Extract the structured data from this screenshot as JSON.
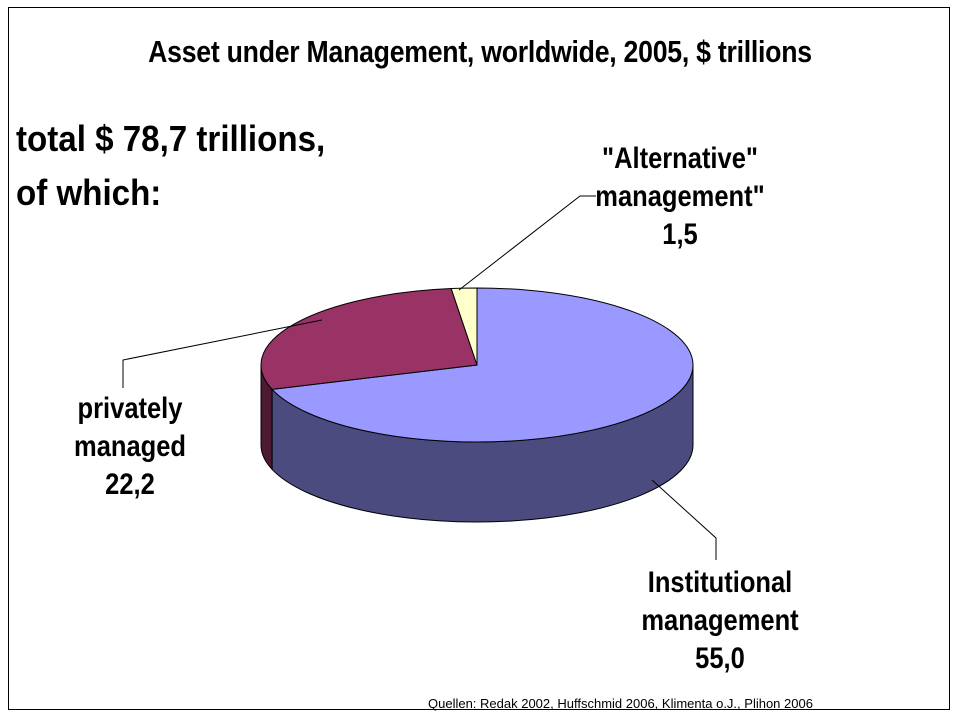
{
  "chart_data": {
    "type": "pie",
    "title": "Asset under Management, worldwide, 2005,  $ trillions",
    "subtitle": "total  $ 78,7 trillions, of which:",
    "slices": [
      {
        "label_lines": [
          "Institutional",
          "management",
          "55,0"
        ],
        "value": 55.0,
        "color": "#9999ff",
        "side_color": "#4b4b80"
      },
      {
        "label_lines": [
          "privately",
          "managed",
          "22,2"
        ],
        "value": 22.2,
        "color": "#993366",
        "side_color": "#4d1a33"
      },
      {
        "label_lines": [
          "\"Alternative\"",
          "management\"",
          "1,5"
        ],
        "value": 1.5,
        "color": "#ffffcc",
        "side_color": "#808066"
      }
    ]
  },
  "source": "Quellen: Redak 2002, Huffschmid 2006, Klimenta o.J., Plihon 2006"
}
